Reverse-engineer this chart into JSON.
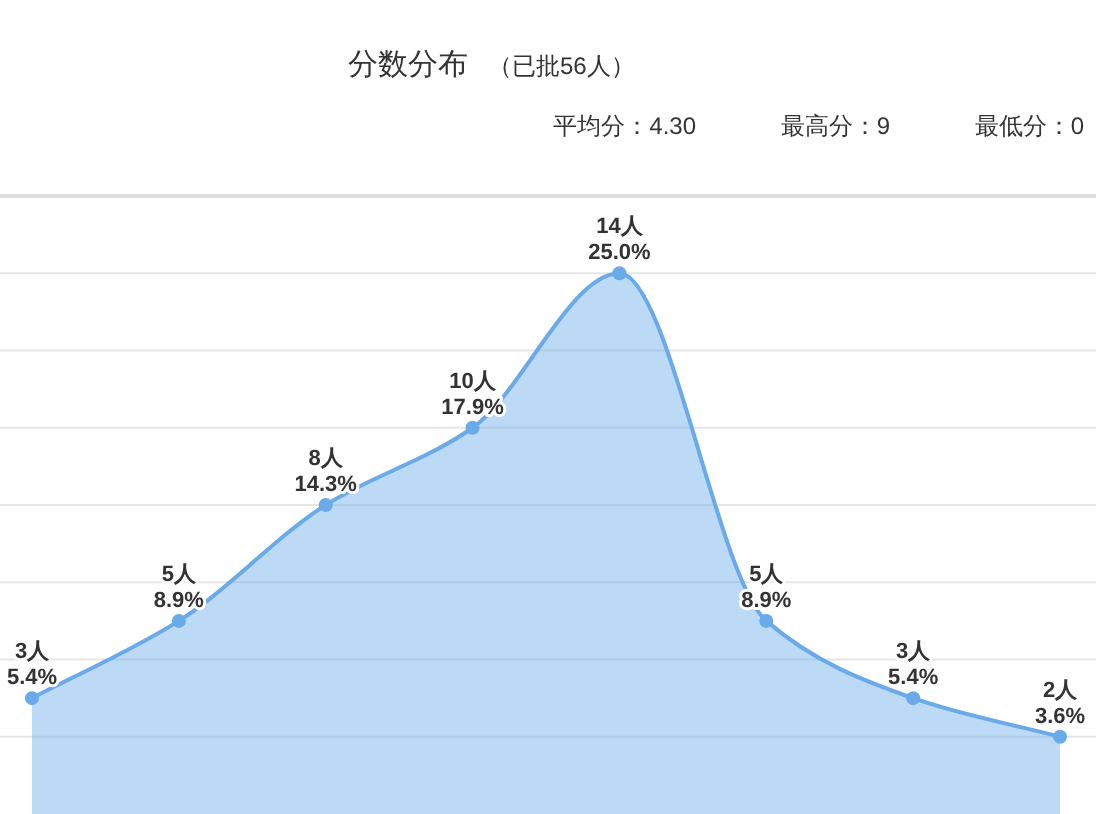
{
  "chart_data": {
    "type": "area",
    "title": "分数分布",
    "subtitle": "（已批56人）",
    "annotations": [
      "平均分：4.30",
      "最高分：9",
      "最低分：0"
    ],
    "categories": [
      null,
      null,
      null,
      null,
      null,
      null,
      null,
      null
    ],
    "values": [
      3,
      5,
      8,
      10,
      14,
      5,
      3,
      2
    ],
    "value_labels": [
      "3人\n5.4%",
      "5人\n8.9%",
      "8人\n14.3%",
      "10人\n17.9%",
      "14人\n25.0%",
      "5人\n8.9%",
      "3人\n5.4%",
      "2人\n3.6%"
    ],
    "color": "#6aaae9",
    "marker": "circle",
    "grid": "y",
    "ylim": [
      0,
      16
    ],
    "yticks": [
      {
        "value": 2,
        "label": null
      },
      {
        "value": 4,
        "label": null
      },
      {
        "value": 6,
        "label": null
      },
      {
        "value": 8,
        "label": null
      },
      {
        "value": 10,
        "label": null
      },
      {
        "value": 12,
        "label": null
      },
      {
        "value": 14,
        "label": null
      },
      {
        "value": 16,
        "label": null
      }
    ]
  }
}
